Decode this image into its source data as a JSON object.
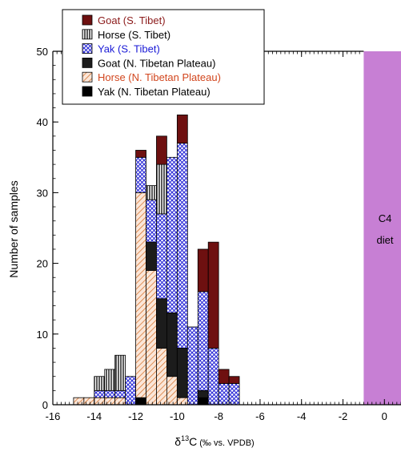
{
  "chart_data": {
    "type": "bar",
    "stacked": true,
    "xlabel_prefix": "δ",
    "xlabel_sup": "13",
    "xlabel_main": "C",
    "xlabel_units": " (‰ vs. VPDB)",
    "ylabel": "Number of samples",
    "xlim": [
      -16,
      0.8
    ],
    "ylim": [
      0,
      50
    ],
    "xticks": [
      -16,
      -14,
      -12,
      -10,
      -8,
      -6,
      -4,
      -2,
      0
    ],
    "yticks": [
      0,
      10,
      20,
      30,
      40,
      50
    ],
    "bin_width": 0.5,
    "bins": [
      -15,
      -14.5,
      -14,
      -13.5,
      -13,
      -12.5,
      -12,
      -11.5,
      -11,
      -10.5,
      -10,
      -9.5,
      -9,
      -8.5,
      -8,
      -7.5
    ],
    "series": [
      {
        "name": "Yak (N. Tibetan Plateau)",
        "pattern": "solid-black",
        "color": "#000000",
        "values": [
          0,
          0,
          0,
          0,
          0,
          0,
          1,
          0,
          0,
          0,
          0,
          0,
          1,
          0,
          0,
          0
        ]
      },
      {
        "name": "Horse (N. Tibetan Plateau)",
        "pattern": "hatch-orange",
        "color": "#d2691e",
        "values": [
          1,
          1,
          1,
          1,
          1,
          0,
          29,
          19,
          8,
          4,
          1,
          0,
          0,
          0,
          0,
          0
        ]
      },
      {
        "name": "Goat (N. Tibetan Plateau)",
        "pattern": "solid-dark",
        "color": "#1a1a1a",
        "values": [
          0,
          0,
          0,
          0,
          0,
          0,
          0,
          4,
          7,
          9,
          7,
          0,
          1,
          0,
          0,
          0
        ]
      },
      {
        "name": "Yak (S. Tibet)",
        "pattern": "crosshatch-blue",
        "color": "#2222cc",
        "values": [
          0,
          0,
          1,
          1,
          1,
          4,
          5,
          6,
          12,
          22,
          29,
          11,
          14,
          8,
          3,
          3
        ]
      },
      {
        "name": "Horse (S. Tibet)",
        "pattern": "vertical-lines",
        "color": "#000000",
        "values": [
          0,
          0,
          2,
          3,
          5,
          0,
          0,
          2,
          7,
          0,
          0,
          0,
          0,
          0,
          0,
          0
        ]
      },
      {
        "name": "Goat (S. Tibet)",
        "pattern": "solid-maroon",
        "color": "#6b0f0f",
        "values": [
          0,
          0,
          0,
          0,
          0,
          0,
          1,
          0,
          4,
          0,
          4,
          0,
          6,
          15,
          2,
          1
        ]
      }
    ],
    "legend": {
      "placement": "top-left",
      "entries": [
        {
          "label": "Goat (S. Tibet)",
          "color": "#8b1a1a",
          "pattern": "solid-maroon"
        },
        {
          "label": "Horse (S. Tibet)",
          "color": "#000000",
          "pattern": "vertical-lines"
        },
        {
          "label": "Yak (S. Tibet)",
          "color": "#1a1ad6",
          "pattern": "crosshatch-blue"
        },
        {
          "label": "Goat (N. Tibetan Plateau)",
          "color": "#000000",
          "pattern": "solid-dark"
        },
        {
          "label": "Horse (N. Tibetan Plateau)",
          "color": "#d2461e",
          "pattern": "hatch-orange"
        },
        {
          "label": "Yak (N. Tibetan Plateau)",
          "color": "#000000",
          "pattern": "solid-black"
        }
      ]
    },
    "region": {
      "from": -1,
      "to": 0.8,
      "color": "#c77fd4",
      "label_line1": "C4",
      "label_line2": "diet"
    },
    "grid": false
  }
}
